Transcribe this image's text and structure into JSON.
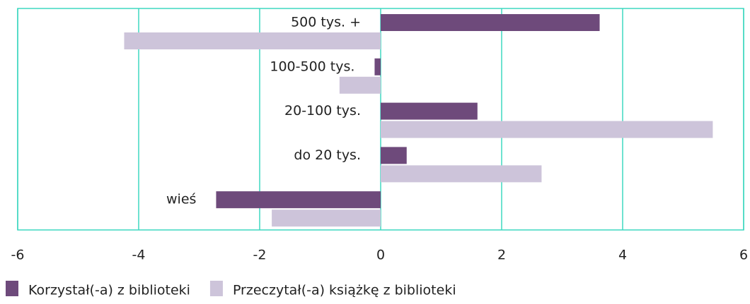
{
  "chart_data": {
    "type": "barh",
    "categories": [
      "500 tys. +",
      "100-500 tys.",
      "20-100 tys.",
      "do 20 tys.",
      "wieś"
    ],
    "series": [
      {
        "name": "Korzystał(-a) z biblioteki",
        "color": "#6e4a7b",
        "values": [
          3.62,
          -0.1,
          1.6,
          0.43,
          -2.72
        ]
      },
      {
        "name": "Przeczytał(-a) książkę z biblioteki",
        "color": "#cdc4da",
        "values": [
          -4.24,
          -0.68,
          5.49,
          2.66,
          -1.8
        ]
      }
    ],
    "xlim": [
      -6,
      6
    ],
    "xticks": [
      -6,
      -4,
      -2,
      0,
      2,
      4,
      6
    ],
    "grid": true,
    "grid_color": "#3ed8c0"
  }
}
